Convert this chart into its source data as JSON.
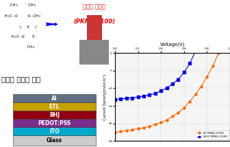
{
  "background_color": "#ffffff",
  "vanadium_text": "바나듬 산화물 구조",
  "product_text_line1": "바나듬 산화물",
  "product_text_line2": "(PKNU-V100)",
  "layers": [
    "Al",
    "ETL",
    "BHJ",
    "PEDOT:PSS",
    "ITO",
    "Glass"
  ],
  "layer_colors_map": {
    "Al": "#607080",
    "ETL": "#C8A000",
    "BHJ": "#900010",
    "PEDOT:PSS": "#7B2D8B",
    "ITO": "#00AACC",
    "Glass": "#CCCCCC"
  },
  "xlabel": "Voltage(V)",
  "ylabel": "Current Density[mA/cm²]",
  "xlim": [
    0.0,
    1.0
  ],
  "ylim": [
    -8,
    2
  ],
  "legend_labels": [
    "W PKNU-V100",
    "W/O PKNU-V100"
  ],
  "legend_colors": [
    "#FF6600",
    "#0000EE"
  ],
  "x_w": [
    0.0,
    0.05,
    0.1,
    0.15,
    0.2,
    0.25,
    0.3,
    0.35,
    0.4,
    0.45,
    0.5,
    0.55,
    0.6,
    0.65,
    0.7,
    0.75,
    0.8,
    0.85,
    0.9,
    0.95,
    1.0
  ],
  "y_w": [
    -7.0,
    -6.9,
    -6.8,
    -6.7,
    -6.6,
    -6.5,
    -6.3,
    -6.1,
    -5.9,
    -5.6,
    -5.2,
    -4.8,
    -4.2,
    -3.5,
    -2.7,
    -1.8,
    -0.7,
    0.5,
    2.0,
    3.8,
    6.0
  ],
  "x_wo": [
    0.0,
    0.05,
    0.1,
    0.15,
    0.2,
    0.25,
    0.3,
    0.35,
    0.4,
    0.45,
    0.5,
    0.55,
    0.6,
    0.65,
    0.7,
    0.75,
    0.8,
    0.85
  ],
  "y_wo": [
    -3.3,
    -3.2,
    -3.15,
    -3.1,
    -3.0,
    -2.9,
    -2.75,
    -2.6,
    -2.3,
    -2.0,
    -1.5,
    -1.0,
    -0.2,
    0.8,
    2.2,
    4.0,
    6.5,
    9.5
  ]
}
